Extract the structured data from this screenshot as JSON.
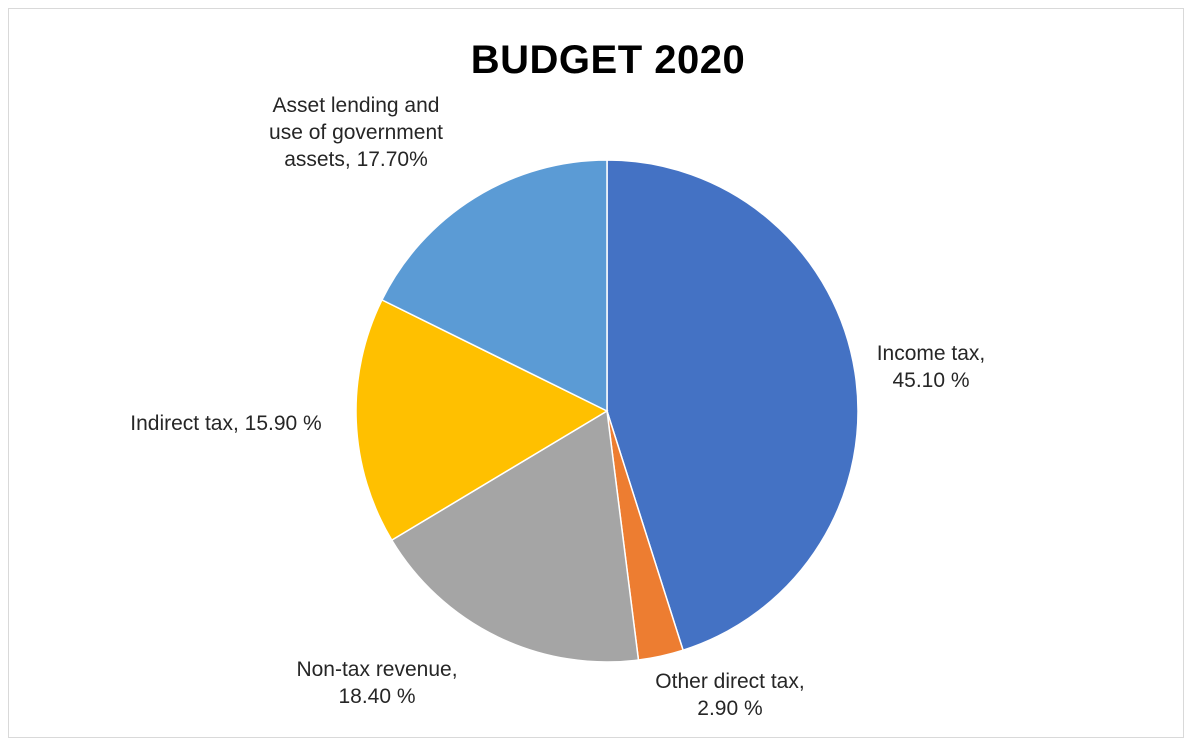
{
  "chart_data": {
    "type": "pie",
    "title": "BUDGET 2020",
    "slices": [
      {
        "label_text": "Income tax,\n45.10 %",
        "name": "Income tax",
        "value": 45.1,
        "color": "#4472c4"
      },
      {
        "label_text": "Other direct tax,\n2.90 %",
        "name": "Other direct tax",
        "value": 2.9,
        "color": "#ed7d31"
      },
      {
        "label_text": "Non-tax revenue,\n18.40 %",
        "name": "Non-tax revenue",
        "value": 18.4,
        "color": "#a5a5a5"
      },
      {
        "label_text": "Indirect tax, 15.90 %",
        "name": "Indirect tax",
        "value": 15.9,
        "color": "#ffc000"
      },
      {
        "label_text": "Asset lending and\nuse of government\nassets, 17.70%",
        "name": "Asset lending and use of government assets",
        "value": 17.7,
        "color": "#5b9bd5"
      }
    ],
    "start_angle": "12 o'clock",
    "direction": "clockwise",
    "legend": "none"
  }
}
